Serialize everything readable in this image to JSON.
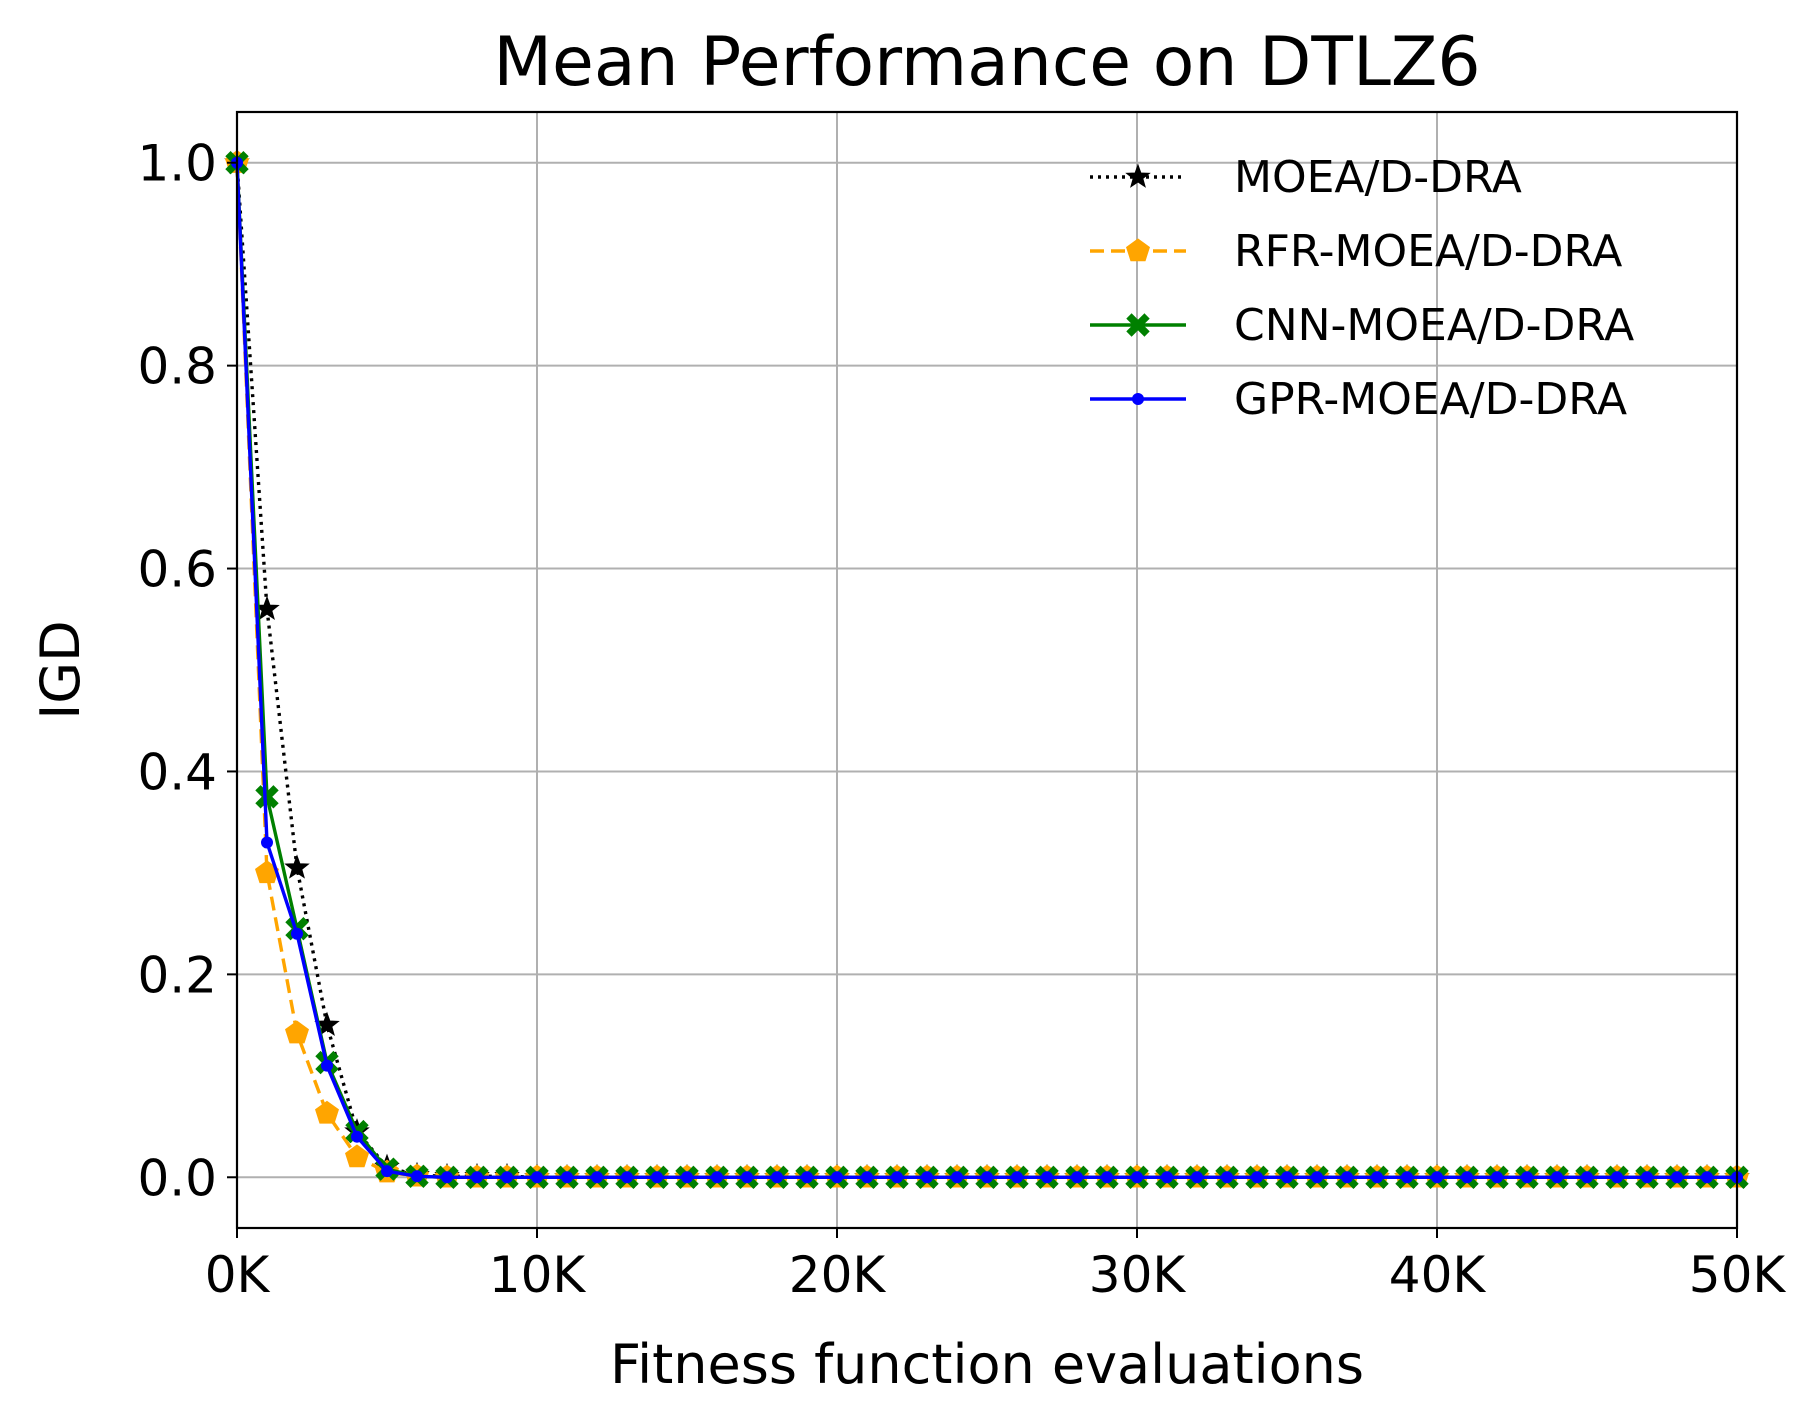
{
  "chart_data": {
    "type": "line",
    "title": "Mean Performance on DTLZ6",
    "xlabel": "Fitness function evaluations",
    "ylabel": "IGD",
    "xlim": [
      0,
      50000
    ],
    "ylim": [
      -0.05,
      1.05
    ],
    "x_ticks": [
      {
        "value": 0,
        "label": "0K"
      },
      {
        "value": 10000,
        "label": "10K"
      },
      {
        "value": 20000,
        "label": "20K"
      },
      {
        "value": 30000,
        "label": "30K"
      },
      {
        "value": 40000,
        "label": "40K"
      },
      {
        "value": 50000,
        "label": "50K"
      }
    ],
    "y_ticks": [
      {
        "value": 0.0,
        "label": "0.0"
      },
      {
        "value": 0.2,
        "label": "0.2"
      },
      {
        "value": 0.4,
        "label": "0.4"
      },
      {
        "value": 0.6,
        "label": "0.6"
      },
      {
        "value": 0.8,
        "label": "0.8"
      },
      {
        "value": 1.0,
        "label": "1.0"
      }
    ],
    "grid": true,
    "legend_position": "top-right",
    "x": [
      0,
      1000,
      2000,
      3000,
      4000,
      5000,
      6000,
      7000,
      8000,
      9000,
      10000,
      11000,
      12000,
      13000,
      14000,
      15000,
      16000,
      17000,
      18000,
      19000,
      20000,
      21000,
      22000,
      23000,
      24000,
      25000,
      26000,
      27000,
      28000,
      29000,
      30000,
      31000,
      32000,
      33000,
      34000,
      35000,
      36000,
      37000,
      38000,
      39000,
      40000,
      41000,
      42000,
      43000,
      44000,
      45000,
      46000,
      47000,
      48000,
      49000,
      50000
    ],
    "series": [
      {
        "name": "MOEA/D-DRA",
        "color": "#000000",
        "line_style": "dotted",
        "marker": "star",
        "values": [
          1.0,
          0.56,
          0.305,
          0.15,
          0.045,
          0.01,
          0.002,
          0.001,
          0.001,
          0.001,
          0.0,
          0.0,
          0.0,
          0.0,
          0.0,
          0.0,
          0.0,
          0.0,
          0.0,
          0.0,
          0.0,
          0.0,
          0.0,
          0.0,
          0.0,
          0.0,
          0.0,
          0.0,
          0.0,
          0.0,
          0.0,
          0.0,
          0.0,
          0.0,
          0.0,
          0.0,
          0.0,
          0.0,
          0.0,
          0.0,
          0.0,
          0.0,
          0.0,
          0.0,
          0.0,
          0.0,
          0.0,
          0.0,
          0.0,
          0.0,
          0.0
        ]
      },
      {
        "name": "RFR-MOEA/D-DRA",
        "color": "#ffa500",
        "line_style": "dashed",
        "marker": "pentagon",
        "values": [
          1.0,
          0.3,
          0.142,
          0.063,
          0.02,
          0.005,
          0.001,
          0.0,
          0.0,
          0.0,
          0.0,
          0.0,
          0.0,
          0.0,
          0.0,
          0.0,
          0.0,
          0.0,
          0.0,
          0.0,
          0.0,
          0.0,
          0.0,
          0.0,
          0.0,
          0.0,
          0.0,
          0.0,
          0.0,
          0.0,
          0.0,
          0.0,
          0.0,
          0.0,
          0.0,
          0.0,
          0.0,
          0.0,
          0.0,
          0.0,
          0.0,
          0.0,
          0.0,
          0.0,
          0.0,
          0.0,
          0.0,
          0.0,
          0.0,
          0.0,
          0.0
        ]
      },
      {
        "name": "CNN-MOEA/D-DRA",
        "color": "#008000",
        "line_style": "solid",
        "marker": "x-filled",
        "values": [
          1.0,
          0.375,
          0.245,
          0.113,
          0.045,
          0.008,
          0.001,
          0.0,
          0.0,
          0.0,
          0.0,
          0.0,
          0.0,
          0.0,
          0.0,
          0.0,
          0.0,
          0.0,
          0.0,
          0.0,
          0.0,
          0.0,
          0.0,
          0.0,
          0.0,
          0.0,
          0.0,
          0.0,
          0.0,
          0.0,
          0.0,
          0.0,
          0.0,
          0.0,
          0.0,
          0.0,
          0.0,
          0.0,
          0.0,
          0.0,
          0.0,
          0.0,
          0.0,
          0.0,
          0.0,
          0.0,
          0.0,
          0.0,
          0.0,
          0.0,
          0.0
        ]
      },
      {
        "name": "GPR-MOEA/D-DRA",
        "color": "#0000ff",
        "line_style": "solid",
        "marker": "dot",
        "values": [
          1.0,
          0.33,
          0.24,
          0.11,
          0.04,
          0.006,
          0.001,
          0.0,
          0.0,
          0.0,
          0.0,
          0.0,
          0.0,
          0.0,
          0.0,
          0.0,
          0.0,
          0.0,
          0.0,
          0.0,
          0.0,
          0.0,
          0.0,
          0.0,
          0.0,
          0.0,
          0.0,
          0.0,
          0.0,
          0.0,
          0.0,
          0.0,
          0.0,
          0.0,
          0.0,
          0.0,
          0.0,
          0.0,
          0.0,
          0.0,
          0.0,
          0.0,
          0.0,
          0.0,
          0.0,
          0.0,
          0.0,
          0.0,
          0.0,
          0.0,
          0.0
        ]
      }
    ]
  }
}
